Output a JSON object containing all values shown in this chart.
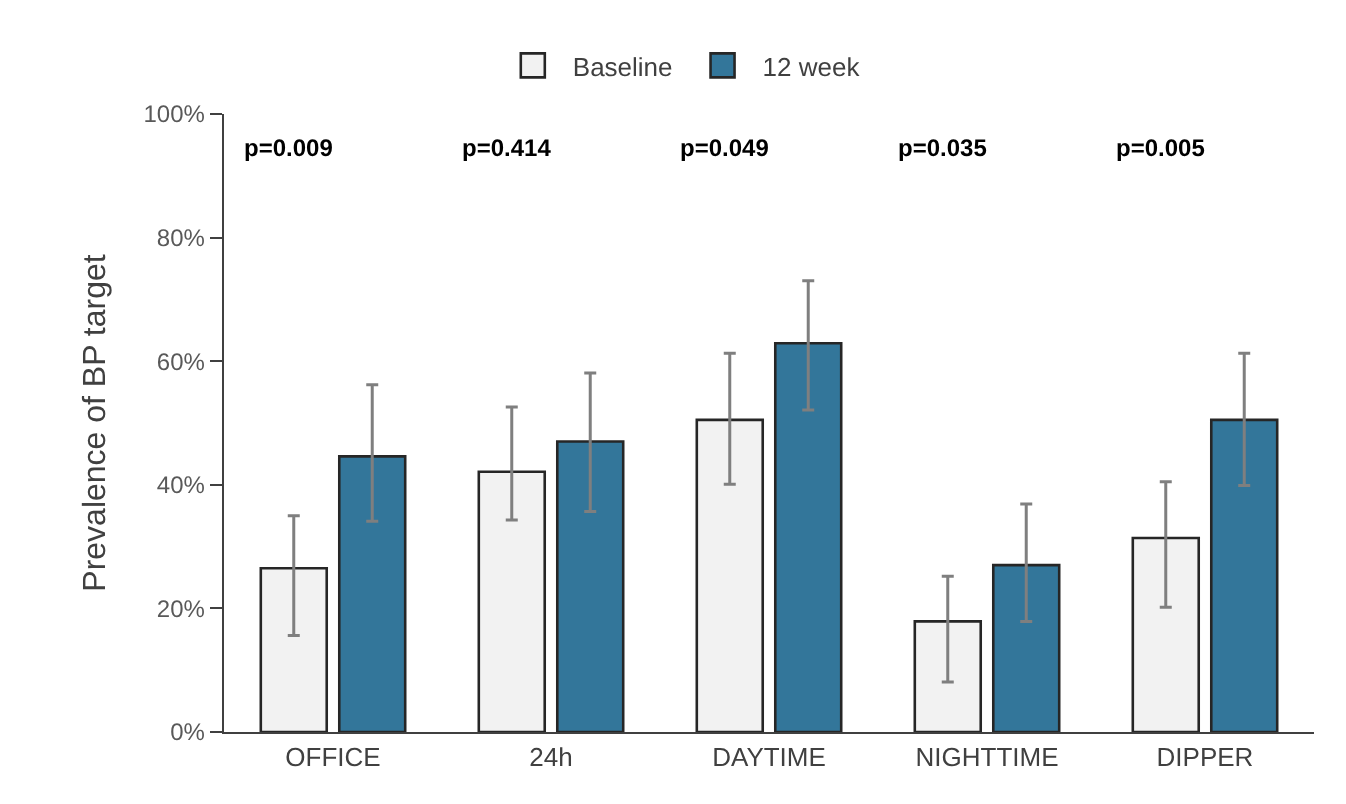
{
  "chart_data": {
    "type": "bar",
    "ylabel": "Prevalence of BP target",
    "categories": [
      "OFFICE",
      "24h",
      "DAYTIME",
      "NIGHTTIME",
      "DIPPER"
    ],
    "series": [
      {
        "name": "Baseline",
        "color": "#f2f2f2",
        "values": [
          26.5,
          42.1,
          50.5,
          17.9,
          31.4
        ],
        "errors": [
          [
            15.6,
            35.0
          ],
          [
            34.3,
            52.6
          ],
          [
            40.1,
            61.3
          ],
          [
            8.1,
            25.2
          ],
          [
            20.2,
            40.5
          ]
        ]
      },
      {
        "name": "12 week",
        "color": "#33769a",
        "values": [
          44.6,
          47.0,
          62.9,
          27.0,
          50.5
        ],
        "errors": [
          [
            34.1,
            56.2
          ],
          [
            35.7,
            58.1
          ],
          [
            52.1,
            73.0
          ],
          [
            17.9,
            36.9
          ],
          [
            39.9,
            61.3
          ]
        ]
      }
    ],
    "ylim": [
      0,
      100
    ],
    "yticks": [
      {
        "value": 0,
        "label": "0%"
      },
      {
        "value": 20,
        "label": "20%"
      },
      {
        "value": 40,
        "label": "40%"
      },
      {
        "value": 60,
        "label": "60%"
      },
      {
        "value": 80,
        "label": "80%"
      },
      {
        "value": 100,
        "label": "100%"
      }
    ],
    "annotations": [
      "p=0.009",
      "p=0.414",
      "p=0.049",
      "p=0.035",
      "p=0.005"
    ],
    "grid": false,
    "legend": "top"
  }
}
